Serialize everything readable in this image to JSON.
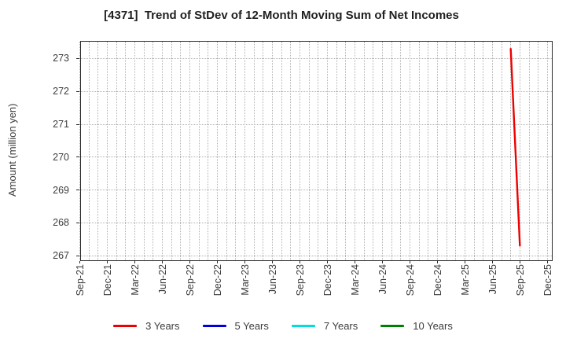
{
  "chart_data": {
    "type": "line",
    "title": "[4371]  Trend of StDev of 12-Month Moving Sum of Net Incomes",
    "ylabel": "Amount (million yen)",
    "xlabel": "",
    "y_ticks": [
      267,
      268,
      269,
      270,
      271,
      272,
      273
    ],
    "ylim": [
      266.85,
      273.55
    ],
    "x_tick_labels": [
      "Sep-21",
      "Dec-21",
      "Mar-22",
      "Jun-22",
      "Sep-22",
      "Dec-22",
      "Mar-23",
      "Jun-23",
      "Sep-23",
      "Dec-23",
      "Mar-24",
      "Jun-24",
      "Sep-24",
      "Dec-24",
      "Mar-25",
      "Jun-25",
      "Sep-25",
      "Dec-25"
    ],
    "x_axis": {
      "start_month": "Sep-21",
      "total_months_span": 51.5,
      "tick_interval_months": 3,
      "minor_grid_interval_months": 1
    },
    "grid": "dotted",
    "legend_position": "bottom-center",
    "series": [
      {
        "name": "3 Years",
        "color": "#ee0000",
        "points": [
          {
            "x": "Aug-25",
            "y": 273.33
          },
          {
            "x": "Sep-25",
            "y": 267.3
          }
        ]
      },
      {
        "name": "5 Years",
        "color": "#0000dd",
        "points": []
      },
      {
        "name": "7 Years",
        "color": "#00dddd",
        "points": []
      },
      {
        "name": "10 Years",
        "color": "#008000",
        "points": []
      }
    ]
  },
  "colors": {
    "background": "#ffffff",
    "plot_border": "#2b2b2b",
    "gridline": "#b2b2b2",
    "tick_text": "#3c3c3c",
    "title_text": "#1f1f1f"
  }
}
